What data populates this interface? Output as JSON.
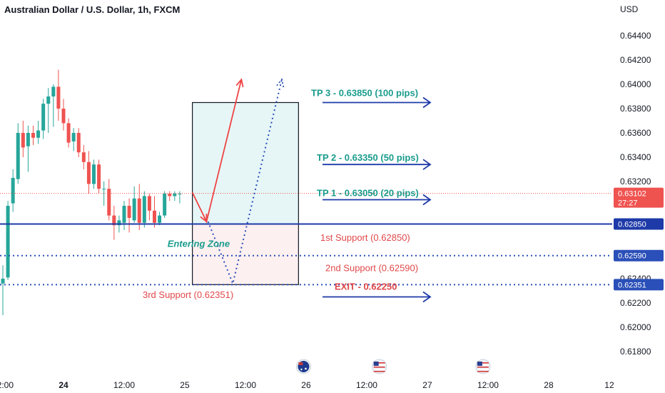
{
  "chart_data": {
    "type": "candlestick",
    "title": "Australian Dollar / U.S. Dollar, 1h, FXCM",
    "currency_label": "USD",
    "y_ticks": [
      0.618,
      0.62,
      0.622,
      0.624,
      0.626,
      0.628,
      0.63,
      0.632,
      0.634,
      0.636,
      0.638,
      0.64,
      0.642,
      0.644
    ],
    "y_tick_labels": [
      "0.61800",
      "0.62000",
      "0.62200",
      "0.62400",
      "",
      "",
      "",
      "0.63200",
      "0.63400",
      "0.63600",
      "0.63800",
      "0.64000",
      "0.64200",
      "0.64400"
    ],
    "x_ticks": [
      {
        "hour": 0,
        "label": "12:00"
      },
      {
        "hour": 12,
        "label": "24"
      },
      {
        "hour": 24,
        "label": "12:00"
      },
      {
        "hour": 36,
        "label": "25"
      },
      {
        "hour": 48,
        "label": "12:00"
      },
      {
        "hour": 60,
        "label": "26"
      },
      {
        "hour": 72,
        "label": "12:00"
      },
      {
        "hour": 84,
        "label": "27"
      },
      {
        "hour": 96,
        "label": "12:00"
      },
      {
        "hour": 108,
        "label": "28"
      },
      {
        "hour": 120,
        "label": "12"
      }
    ],
    "candles": [
      {
        "t": -1.0,
        "o": 0.6244,
        "h": 0.6258,
        "l": 0.6238,
        "c": 0.6249
      },
      {
        "t": 0.0,
        "o": 0.6236,
        "h": 0.6251,
        "l": 0.621,
        "c": 0.624
      },
      {
        "t": 1.0,
        "o": 0.6241,
        "h": 0.6304,
        "l": 0.6239,
        "c": 0.63
      },
      {
        "t": 2.0,
        "o": 0.6302,
        "h": 0.633,
        "l": 0.6295,
        "c": 0.6323
      },
      {
        "t": 3.0,
        "o": 0.6322,
        "h": 0.6368,
        "l": 0.6318,
        "c": 0.636
      },
      {
        "t": 4.0,
        "o": 0.636,
        "h": 0.637,
        "l": 0.634,
        "c": 0.6348
      },
      {
        "t": 5.0,
        "o": 0.6349,
        "h": 0.6366,
        "l": 0.6328,
        "c": 0.636
      },
      {
        "t": 6.0,
        "o": 0.636,
        "h": 0.6366,
        "l": 0.635,
        "c": 0.6356
      },
      {
        "t": 7.0,
        "o": 0.6356,
        "h": 0.637,
        "l": 0.6351,
        "c": 0.6362
      },
      {
        "t": 8.0,
        "o": 0.6362,
        "h": 0.6388,
        "l": 0.6355,
        "c": 0.6384
      },
      {
        "t": 9.0,
        "o": 0.6384,
        "h": 0.6397,
        "l": 0.636,
        "c": 0.639
      },
      {
        "t": 10.0,
        "o": 0.639,
        "h": 0.64,
        "l": 0.6365,
        "c": 0.6398
      },
      {
        "t": 11.0,
        "o": 0.6398,
        "h": 0.6412,
        "l": 0.637,
        "c": 0.638
      },
      {
        "t": 12.0,
        "o": 0.638,
        "h": 0.6388,
        "l": 0.6362,
        "c": 0.6368
      },
      {
        "t": 13.0,
        "o": 0.6368,
        "h": 0.6372,
        "l": 0.6348,
        "c": 0.6352
      },
      {
        "t": 14.0,
        "o": 0.6353,
        "h": 0.6364,
        "l": 0.6345,
        "c": 0.636
      },
      {
        "t": 15.0,
        "o": 0.636,
        "h": 0.6364,
        "l": 0.634,
        "c": 0.6344
      },
      {
        "t": 16.0,
        "o": 0.6344,
        "h": 0.635,
        "l": 0.633,
        "c": 0.6336
      },
      {
        "t": 17.0,
        "o": 0.6336,
        "h": 0.6345,
        "l": 0.631,
        "c": 0.6318
      },
      {
        "t": 18.0,
        "o": 0.6318,
        "h": 0.6338,
        "l": 0.6314,
        "c": 0.6334
      },
      {
        "t": 19.0,
        "o": 0.6334,
        "h": 0.6338,
        "l": 0.631,
        "c": 0.6314
      },
      {
        "t": 20.0,
        "o": 0.6314,
        "h": 0.632,
        "l": 0.63,
        "c": 0.6314
      },
      {
        "t": 21.0,
        "o": 0.6314,
        "h": 0.6322,
        "l": 0.6288,
        "c": 0.6292
      },
      {
        "t": 22.0,
        "o": 0.6292,
        "h": 0.63,
        "l": 0.6272,
        "c": 0.6284
      },
      {
        "t": 23.0,
        "o": 0.6284,
        "h": 0.6292,
        "l": 0.6278,
        "c": 0.6288
      },
      {
        "t": 24.0,
        "o": 0.6286,
        "h": 0.6304,
        "l": 0.628,
        "c": 0.63
      },
      {
        "t": 25.0,
        "o": 0.63,
        "h": 0.6306,
        "l": 0.6278,
        "c": 0.629
      },
      {
        "t": 26.0,
        "o": 0.6288,
        "h": 0.6316,
        "l": 0.6286,
        "c": 0.6306
      },
      {
        "t": 27.0,
        "o": 0.6306,
        "h": 0.6318,
        "l": 0.628,
        "c": 0.6286
      },
      {
        "t": 28.0,
        "o": 0.6286,
        "h": 0.6312,
        "l": 0.6282,
        "c": 0.6308
      },
      {
        "t": 29.0,
        "o": 0.6308,
        "h": 0.631,
        "l": 0.6288,
        "c": 0.6296
      },
      {
        "t": 30.0,
        "o": 0.6296,
        "h": 0.6308,
        "l": 0.6282,
        "c": 0.6286
      },
      {
        "t": 31.0,
        "o": 0.6286,
        "h": 0.6295,
        "l": 0.6284,
        "c": 0.6292
      },
      {
        "t": 32.0,
        "o": 0.6292,
        "h": 0.6312,
        "l": 0.629,
        "c": 0.631
      },
      {
        "t": 33.0,
        "o": 0.631,
        "h": 0.6312,
        "l": 0.6304,
        "c": 0.6308
      },
      {
        "t": 34.0,
        "o": 0.6308,
        "h": 0.6312,
        "l": 0.6304,
        "c": 0.631
      },
      {
        "t": 35.0,
        "o": 0.631,
        "h": 0.6312,
        "l": 0.6302,
        "c": 0.631
      }
    ],
    "colors": {
      "up": "#26a69a",
      "down": "#ef5350",
      "blue": "#1e3aa8",
      "red": "#ef4444",
      "dot_blue": "#2a4fb8"
    },
    "current_price": {
      "value": 0.63102,
      "label": "0.63102",
      "countdown": "27:27"
    },
    "position_box": {
      "t_start": 37.5,
      "t_end": 58.5,
      "entry": 0.6285,
      "target": 0.6385,
      "stop": 0.62351
    },
    "levels": [
      {
        "value": 0.6285,
        "label": "0.62850",
        "style": "solid"
      },
      {
        "value": 0.6259,
        "label": "0.62590",
        "style": "dotted"
      },
      {
        "value": 0.62351,
        "label": "0.62351",
        "style": "dotted"
      }
    ],
    "projection_solid": [
      [
        37.5,
        0.6311
      ],
      [
        40.3,
        0.6287
      ],
      [
        47.2,
        0.6404
      ]
    ],
    "projection_dotted": [
      [
        40.6,
        0.6287
      ],
      [
        45.5,
        0.6236
      ],
      [
        55.2,
        0.6404
      ]
    ],
    "targets": [
      {
        "text": "TP 3 - 0.63850 (100 pips)",
        "price": 0.6385
      },
      {
        "text": "TP 2 - 0.63350 (50 pips)",
        "price": 0.6334
      },
      {
        "text": "TP 1 - 0.63050 (20 pips)",
        "price": 0.6305
      }
    ],
    "exit": {
      "text": "EXIT - 0.62250",
      "price": 0.6225
    },
    "supports": [
      {
        "text": "1st Support (0.62850)",
        "price": 0.6274
      },
      {
        "text": "2nd Support (0.62590)",
        "price": 0.6249
      },
      {
        "text": "3rd Support (0.62351)",
        "price": 0.6227
      }
    ],
    "entering_zone": {
      "text": "Entering Zone",
      "price": 0.6269,
      "t": 38.5
    },
    "event_flags": [
      {
        "t": 59.5,
        "country": "AU"
      },
      {
        "t": 74.5,
        "country": "US"
      },
      {
        "t": 95.0,
        "country": "US"
      }
    ]
  }
}
